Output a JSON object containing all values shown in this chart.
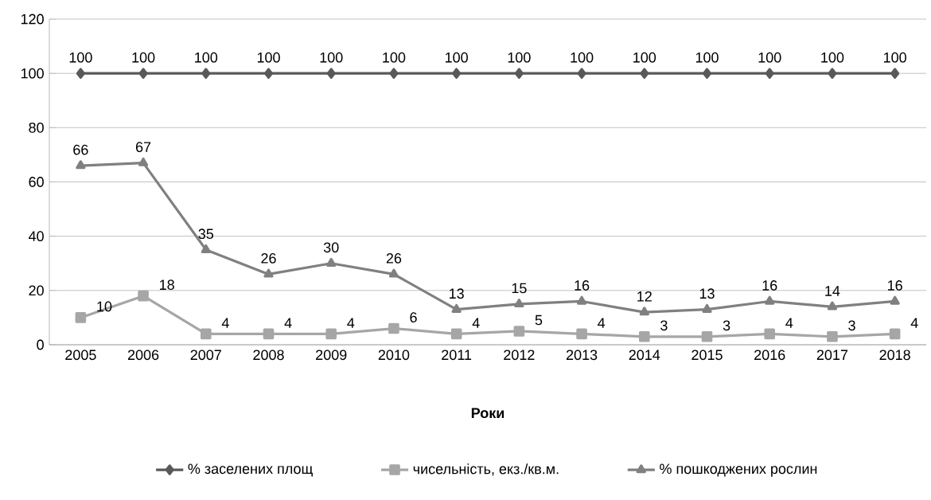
{
  "chart_data": {
    "type": "line",
    "xlabel": "Роки",
    "categories": [
      "2005",
      "2006",
      "2007",
      "2008",
      "2009",
      "2010",
      "2011",
      "2012",
      "2013",
      "2014",
      "2015",
      "2016",
      "2017",
      "2018"
    ],
    "series": [
      {
        "name": "% заселених площ",
        "color": "#595959",
        "marker": "diamond",
        "values": [
          100,
          100,
          100,
          100,
          100,
          100,
          100,
          100,
          100,
          100,
          100,
          100,
          100,
          100
        ]
      },
      {
        "name": "чисельність, екз./кв.м.",
        "color": "#a6a6a6",
        "marker": "square",
        "values": [
          10,
          18,
          4,
          4,
          4,
          6,
          4,
          5,
          4,
          3,
          3,
          4,
          3,
          4
        ]
      },
      {
        "name": "% пошкоджених рослин",
        "color": "#808080",
        "marker": "triangle",
        "values": [
          66,
          67,
          35,
          26,
          30,
          26,
          13,
          15,
          16,
          12,
          13,
          16,
          14,
          16
        ]
      }
    ],
    "ylim": [
      0,
      120
    ],
    "yticks": [
      0,
      20,
      40,
      60,
      80,
      100,
      120
    ],
    "grid": "y",
    "legend": "bottom",
    "data_labels": true
  }
}
